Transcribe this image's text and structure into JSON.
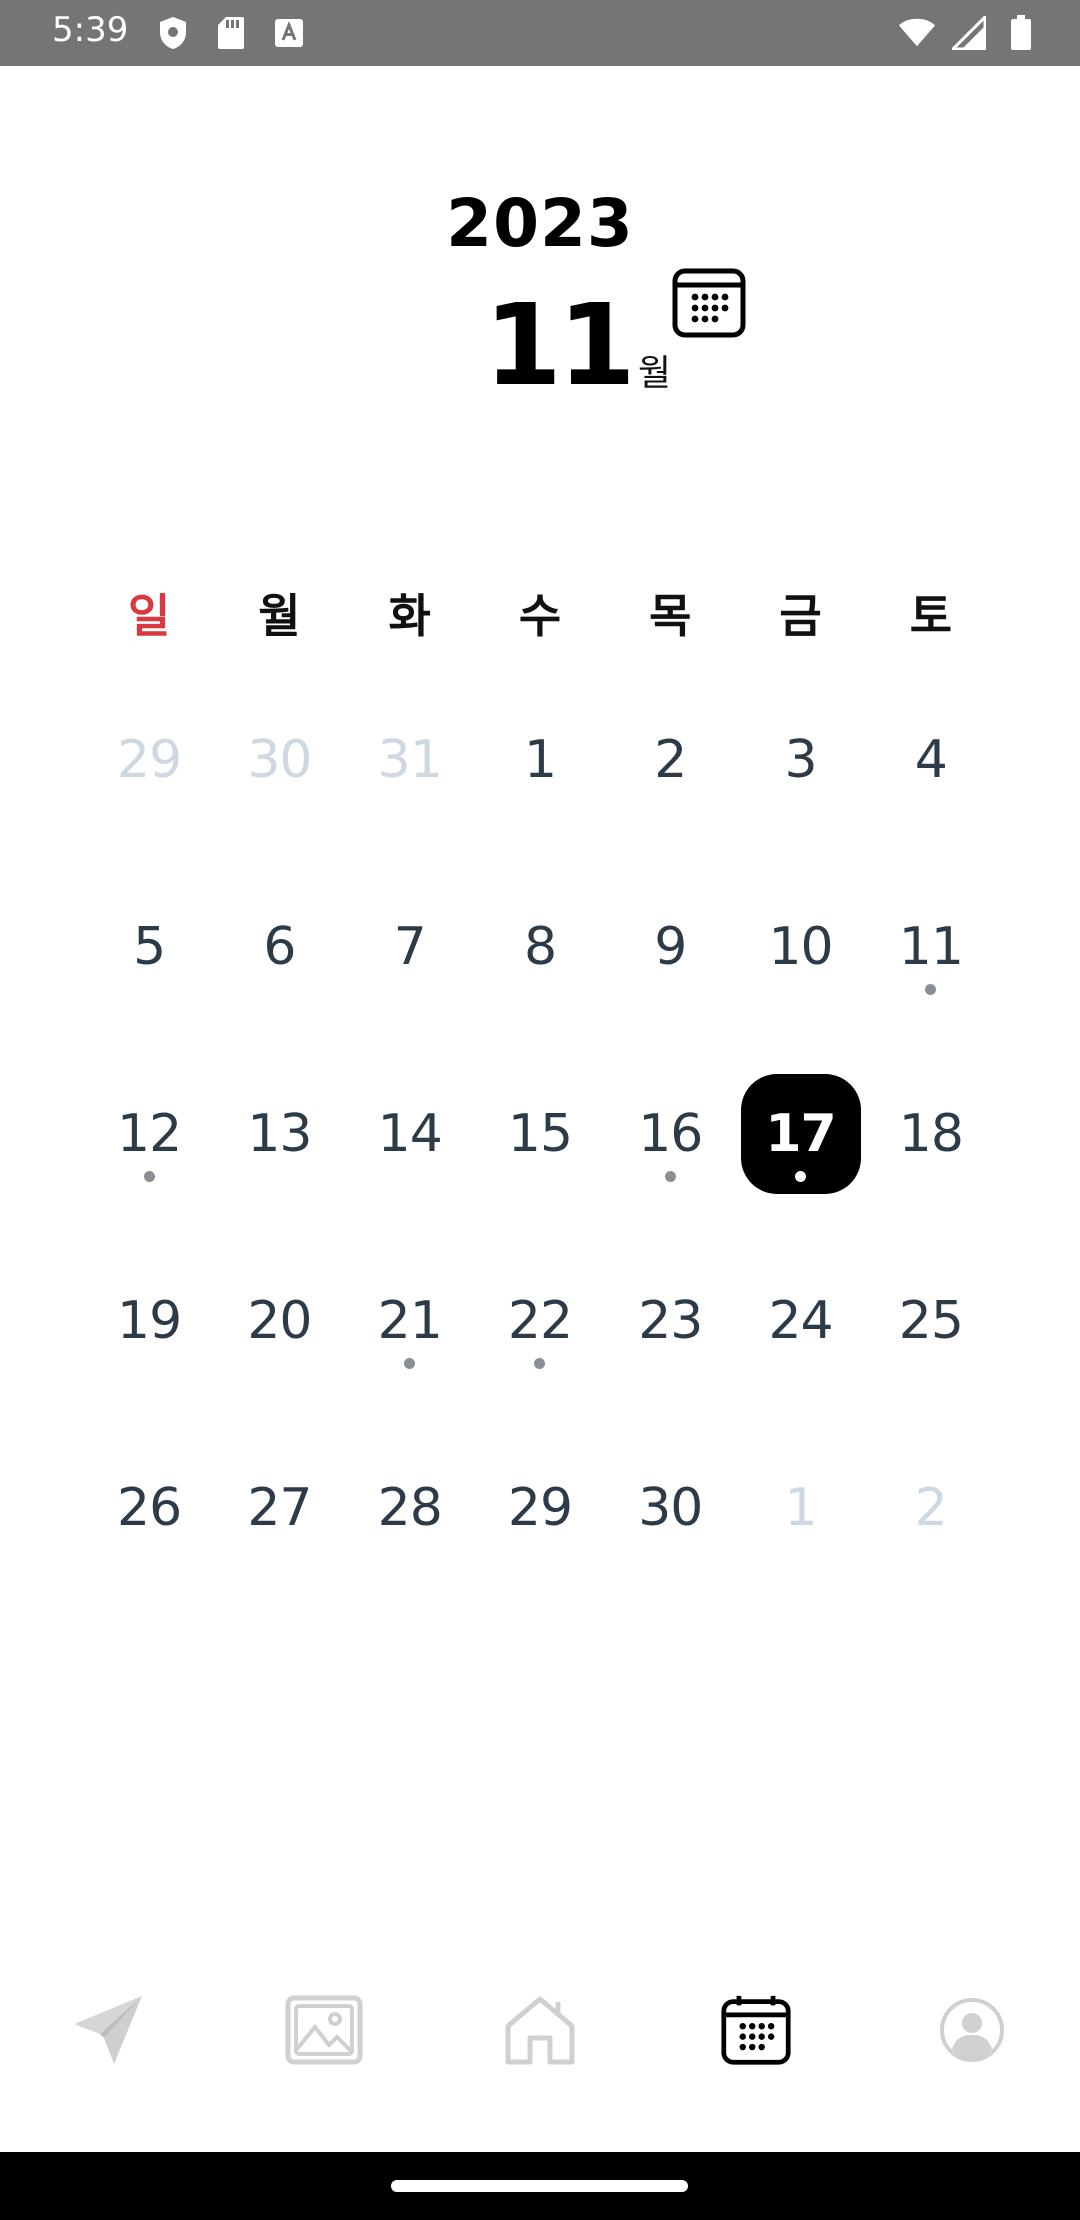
{
  "status_bar": {
    "time": "5:39",
    "left_icons": [
      "shield-icon",
      "sd-card-icon",
      "font-a-icon"
    ],
    "right_icons": [
      "wifi-icon",
      "signal-icon",
      "battery-icon"
    ]
  },
  "header": {
    "year": "2023",
    "month": "11",
    "month_unit": "월",
    "calendar_button_icon": "calendar-icon"
  },
  "weekdays": [
    "일",
    "월",
    "화",
    "수",
    "목",
    "금",
    "토"
  ],
  "calendar": {
    "selected_day": "17",
    "days": [
      {
        "label": "29",
        "muted": true,
        "dot": false
      },
      {
        "label": "30",
        "muted": true,
        "dot": false
      },
      {
        "label": "31",
        "muted": true,
        "dot": false
      },
      {
        "label": "1",
        "muted": false,
        "dot": false
      },
      {
        "label": "2",
        "muted": false,
        "dot": false
      },
      {
        "label": "3",
        "muted": false,
        "dot": false
      },
      {
        "label": "4",
        "muted": false,
        "dot": false
      },
      {
        "label": "5",
        "muted": false,
        "dot": false
      },
      {
        "label": "6",
        "muted": false,
        "dot": false
      },
      {
        "label": "7",
        "muted": false,
        "dot": false
      },
      {
        "label": "8",
        "muted": false,
        "dot": false
      },
      {
        "label": "9",
        "muted": false,
        "dot": false
      },
      {
        "label": "10",
        "muted": false,
        "dot": false
      },
      {
        "label": "11",
        "muted": false,
        "dot": true
      },
      {
        "label": "12",
        "muted": false,
        "dot": true
      },
      {
        "label": "13",
        "muted": false,
        "dot": false
      },
      {
        "label": "14",
        "muted": false,
        "dot": false
      },
      {
        "label": "15",
        "muted": false,
        "dot": false
      },
      {
        "label": "16",
        "muted": false,
        "dot": true
      },
      {
        "label": "17",
        "muted": false,
        "dot": true,
        "selected": true
      },
      {
        "label": "18",
        "muted": false,
        "dot": false
      },
      {
        "label": "19",
        "muted": false,
        "dot": false
      },
      {
        "label": "20",
        "muted": false,
        "dot": false
      },
      {
        "label": "21",
        "muted": false,
        "dot": true
      },
      {
        "label": "22",
        "muted": false,
        "dot": true
      },
      {
        "label": "23",
        "muted": false,
        "dot": false
      },
      {
        "label": "24",
        "muted": false,
        "dot": false
      },
      {
        "label": "25",
        "muted": false,
        "dot": false
      },
      {
        "label": "26",
        "muted": false,
        "dot": false
      },
      {
        "label": "27",
        "muted": false,
        "dot": false
      },
      {
        "label": "28",
        "muted": false,
        "dot": false
      },
      {
        "label": "29",
        "muted": false,
        "dot": false
      },
      {
        "label": "30",
        "muted": false,
        "dot": false
      },
      {
        "label": "1",
        "muted": true,
        "dot": false
      },
      {
        "label": "2",
        "muted": true,
        "dot": false
      }
    ]
  },
  "bottom_nav": {
    "items": [
      {
        "icon": "send-icon",
        "active": false
      },
      {
        "icon": "gallery-icon",
        "active": false
      },
      {
        "icon": "home-icon",
        "active": false
      },
      {
        "icon": "calendar-icon",
        "active": true
      },
      {
        "icon": "profile-icon",
        "active": false
      }
    ]
  },
  "colors": {
    "sunday": "#d8383f",
    "day_text": "#2d3a48",
    "muted_text": "#cfd8e1",
    "selected_bg": "#000000",
    "inactive_nav": "#d3d3d3",
    "status_bar": "#757575"
  }
}
